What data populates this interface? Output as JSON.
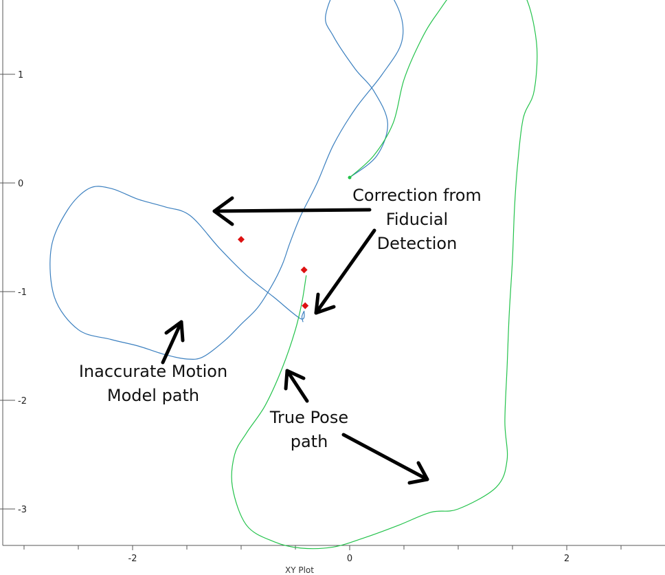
{
  "chart_data": {
    "type": "line",
    "title": "",
    "xlabel": "XY Plot",
    "ylabel": "",
    "xlim": [
      -3.2,
      2.9
    ],
    "ylim": [
      -3.35,
      1.55
    ],
    "x_ticks": [
      -2,
      0,
      2
    ],
    "y_ticks": [
      1,
      0,
      -1,
      -2,
      -3
    ],
    "grid": false,
    "colors": {
      "motion_model": "#3a7fbf",
      "true_pose": "#22c24a",
      "fiducial": "#dd1111",
      "annotation": "#000000"
    },
    "series": [
      {
        "id": "motion_model",
        "x": [
          0.0,
          0.25,
          0.35,
          0.22,
          0.05,
          -0.15,
          -0.22,
          -0.05,
          0.22,
          0.45,
          0.48,
          0.3,
          0.05,
          -0.15,
          -0.3,
          -0.45,
          -0.55,
          -0.62,
          -0.72,
          -0.85,
          -1.0,
          -1.15,
          -1.35,
          -1.5,
          -1.7,
          -1.95,
          -2.2,
          -2.5,
          -2.72,
          -2.75,
          -2.6,
          -2.4,
          -2.2,
          -1.95,
          -1.7,
          -1.47,
          -1.2,
          -0.95,
          -0.7,
          -0.45,
          -0.42,
          -0.44,
          -0.43
        ],
        "y": [
          0.05,
          0.25,
          0.55,
          0.85,
          1.05,
          1.35,
          1.55,
          1.9,
          1.92,
          1.6,
          1.3,
          1.0,
          0.68,
          0.35,
          0.0,
          -0.3,
          -0.55,
          -0.75,
          -0.95,
          -1.15,
          -1.3,
          -1.45,
          -1.6,
          -1.62,
          -1.58,
          -1.5,
          -1.44,
          -1.35,
          -1.05,
          -0.6,
          -0.25,
          -0.05,
          -0.05,
          -0.15,
          -0.22,
          -0.3,
          -0.6,
          -0.85,
          -1.05,
          -1.25,
          -1.18,
          -1.23,
          -1.28
        ]
      },
      {
        "id": "true_pose",
        "x": [
          0.0,
          0.22,
          0.4,
          0.5,
          0.65,
          0.8,
          1.05,
          1.35,
          1.6,
          1.72,
          1.7,
          1.6,
          1.55,
          1.52,
          1.5,
          1.47,
          1.45,
          1.43,
          1.45,
          1.35,
          1.0,
          0.75,
          0.45,
          0.15,
          -0.15,
          -0.45,
          -0.7,
          -0.95,
          -1.08,
          -1.06,
          -0.95,
          -0.78,
          -0.62,
          -0.5,
          -0.44,
          -0.4
        ],
        "y": [
          0.05,
          0.25,
          0.55,
          0.95,
          1.3,
          1.55,
          1.85,
          1.88,
          1.75,
          1.3,
          0.85,
          0.6,
          0.2,
          -0.2,
          -0.7,
          -1.2,
          -1.7,
          -2.2,
          -2.55,
          -2.8,
          -3.0,
          -3.03,
          -3.15,
          -3.26,
          -3.35,
          -3.36,
          -3.3,
          -3.15,
          -2.8,
          -2.5,
          -2.3,
          -2.05,
          -1.7,
          -1.35,
          -1.1,
          -0.85
        ]
      }
    ],
    "start_marker": {
      "x": 0.0,
      "y": 0.05
    },
    "fiducial_markers": [
      {
        "x": -1.0,
        "y": -0.52
      },
      {
        "x": -0.42,
        "y": -0.8
      },
      {
        "x": -0.41,
        "y": -1.13
      }
    ],
    "annotations": [
      {
        "id": "correction",
        "lines": [
          "Correction from",
          "Fiducial",
          "Detection"
        ]
      },
      {
        "id": "inaccurate",
        "lines": [
          "Inaccurate Motion",
          "Model path"
        ]
      },
      {
        "id": "true_pose",
        "lines": [
          "True Pose",
          "path"
        ]
      }
    ]
  }
}
